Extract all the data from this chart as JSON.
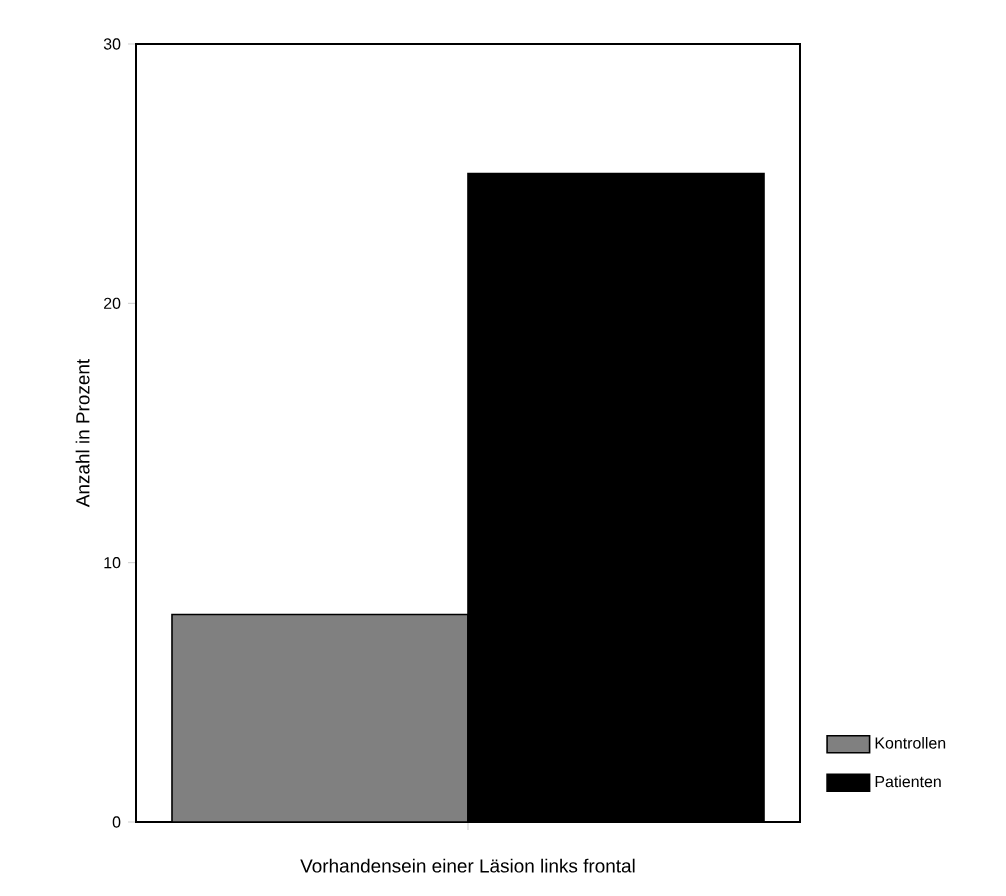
{
  "chart_data": {
    "type": "bar",
    "xlabel": "Vorhandensein einer Läsion  links frontal",
    "ylabel": "Anzahl in Prozent",
    "categories": [
      null
    ],
    "series": [
      {
        "name": "Kontrollen",
        "color": "#808080",
        "values": [
          8
        ]
      },
      {
        "name": "Patienten",
        "color": "#000000",
        "values": [
          25
        ]
      }
    ],
    "ylim": [
      0,
      30
    ],
    "yticks": [
      0,
      10,
      20,
      30
    ],
    "grid": false,
    "legend": "bottom right"
  }
}
